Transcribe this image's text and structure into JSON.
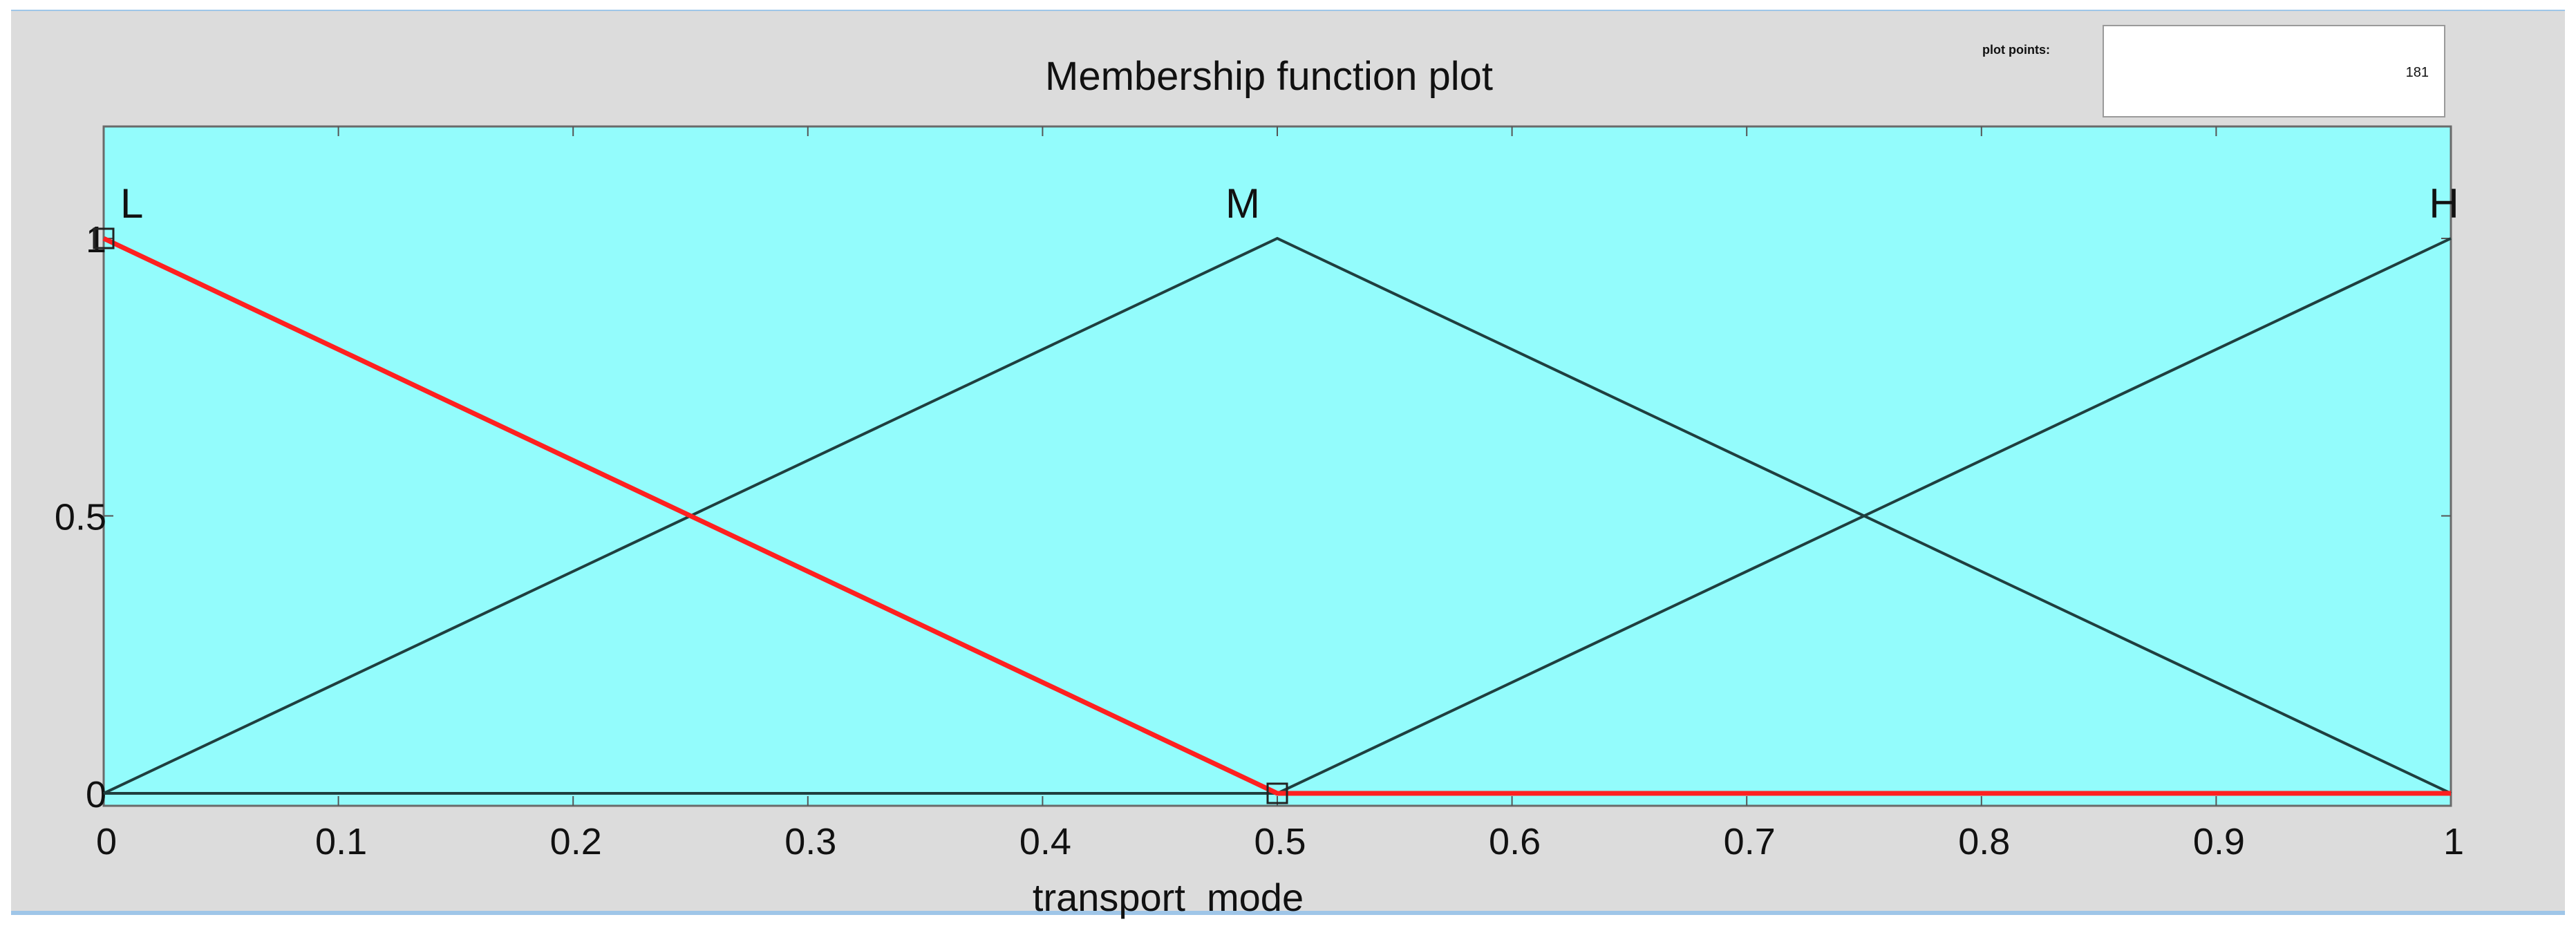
{
  "panel": {
    "plot_points_label": "plot points:",
    "plot_points_value": "181"
  },
  "chart_data": {
    "type": "line",
    "title": "Membership function plot",
    "xlabel": "transport  mode",
    "ylabel": "",
    "xlim": [
      0,
      1
    ],
    "ylim": [
      0,
      1.1
    ],
    "x_ticks": [
      "0",
      "0.1",
      "0.2",
      "0.3",
      "0.4",
      "0.5",
      "0.6",
      "0.7",
      "0.8",
      "0.9",
      "1"
    ],
    "y_ticks": [
      "0",
      "0.5",
      "1"
    ],
    "grid": true,
    "background_color": "#93fcfc",
    "series": [
      {
        "name": "L",
        "selected": true,
        "color": "#ff2020",
        "x": [
          0,
          0.5,
          1
        ],
        "y": [
          1,
          0,
          0
        ]
      },
      {
        "name": "M",
        "selected": false,
        "color": "#1f3f3f",
        "x": [
          0,
          0.5,
          1
        ],
        "y": [
          0,
          1,
          0
        ]
      },
      {
        "name": "H",
        "selected": false,
        "color": "#1f3f3f",
        "x": [
          0,
          0.5,
          1
        ],
        "y": [
          0,
          0,
          1
        ]
      }
    ]
  }
}
